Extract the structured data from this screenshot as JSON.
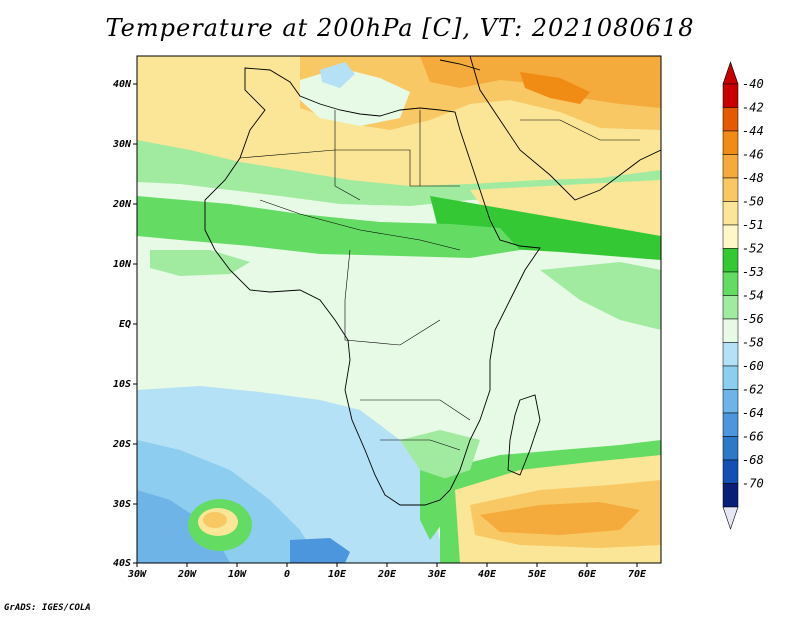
{
  "title": "Temperature at 200hPa [C], VT: 2021080618",
  "credit": "GrADS: IGES/COLA",
  "lon_ticks": [
    "30W",
    "20W",
    "10W",
    "0",
    "10E",
    "20E",
    "30E",
    "40E",
    "50E",
    "60E",
    "70E"
  ],
  "lat_ticks": [
    "40N",
    "30N",
    "20N",
    "10N",
    "EQ",
    "10S",
    "20S",
    "30S",
    "40S"
  ],
  "colorbar": {
    "labels": [
      "-40",
      "-42",
      "-44",
      "-46",
      "-48",
      "-50",
      "-51",
      "-52",
      "-53",
      "-54",
      "-56",
      "-58",
      "-60",
      "-62",
      "-64",
      "-66",
      "-68",
      "-70"
    ],
    "colors": [
      "#c80000",
      "#e35a00",
      "#f08c14",
      "#f5aa3c",
      "#f8c864",
      "#fae696",
      "#fff7c8",
      "#35c835",
      "#64dc64",
      "#a0eba0",
      "#e6fae6",
      "#b4e1f5",
      "#8ccdf0",
      "#6eb4e6",
      "#4b96dc",
      "#2d78c8",
      "#1450b4",
      "#0a1e78"
    ],
    "top_arrow_color": "#c80000",
    "bottom_arrow_color": "#e6e6f5"
  }
}
